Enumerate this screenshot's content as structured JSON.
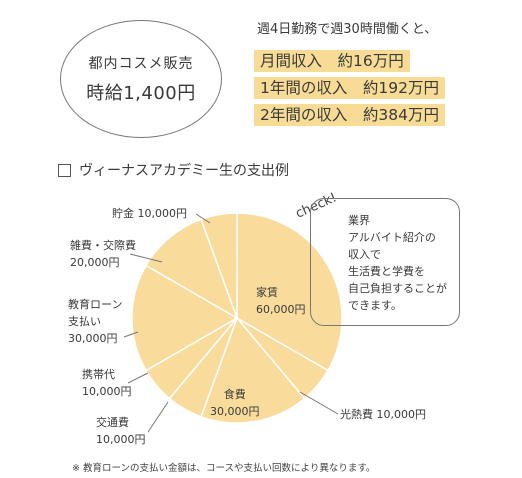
{
  "badge": {
    "line1": "都内コスメ販売",
    "line2": "時給1,400円"
  },
  "intro": "週4日勤務で週30時間働くと、",
  "income": [
    "月間収入　約16万円",
    "1年間の収入　約192万円",
    "2年間の収入　約384万円"
  ],
  "section_title": "ヴィーナスアカデミー生の支出例",
  "check_label": "check!",
  "note": [
    "業界",
    "アルバイト紹介の",
    "収入で",
    "生活費と学費を",
    "自己負担することが",
    "できます。"
  ],
  "footnote": "※ 教育ローンの支払い金額は、コースや支払い回数により異なります。",
  "colors": {
    "pie": "#f9dc9b",
    "highlight": "#f8dc95",
    "line": "#777777"
  },
  "chart_data": {
    "type": "pie",
    "title": "ヴィーナスアカデミー生の支出例",
    "slices": [
      {
        "name": "家賃",
        "value": 60000,
        "label": "60,000円"
      },
      {
        "name": "光熱費",
        "value": 10000,
        "label": "10,000円"
      },
      {
        "name": "食費",
        "value": 30000,
        "label": "30,000円"
      },
      {
        "name": "交通費",
        "value": 10000,
        "label": "10,000円"
      },
      {
        "name": "携帯代",
        "value": 10000,
        "label": "10,000円"
      },
      {
        "name": "教育ローン支払い",
        "value": 30000,
        "label": "30,000円"
      },
      {
        "name": "雑費・交際費",
        "value": 20000,
        "label": "20,000円"
      },
      {
        "name": "貯金",
        "value": 10000,
        "label": "10,000円"
      }
    ]
  }
}
